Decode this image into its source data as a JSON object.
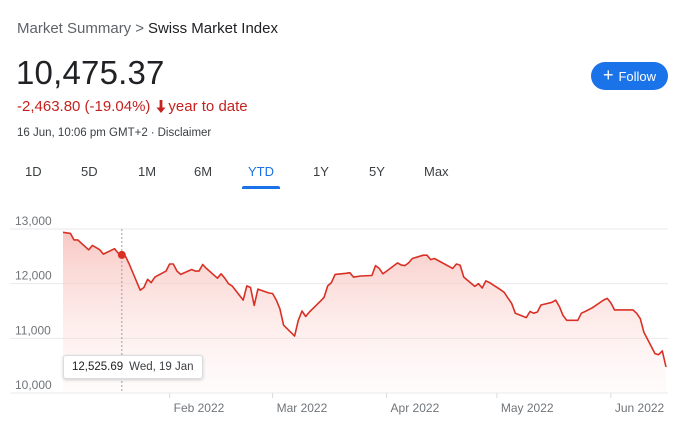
{
  "breadcrumb": {
    "parent": "Market Summary",
    "separator": ">",
    "current": "Swiss Market Index"
  },
  "quote": {
    "price": "10,475.37",
    "change": "-2,463.80 (-19.04%)",
    "period": "year to date",
    "timestamp": "16 Jun, 10:06 pm GMT+2",
    "separator": "·",
    "disclaimer": "Disclaimer"
  },
  "follow": {
    "label": "Follow",
    "icon": "plus-icon"
  },
  "tabs": [
    {
      "id": "1d",
      "label": "1D",
      "active": false
    },
    {
      "id": "5d",
      "label": "5D",
      "active": false
    },
    {
      "id": "1m",
      "label": "1M",
      "active": false
    },
    {
      "id": "6m",
      "label": "6M",
      "active": false
    },
    {
      "id": "ytd",
      "label": "YTD",
      "active": true
    },
    {
      "id": "1y",
      "label": "1Y",
      "active": false
    },
    {
      "id": "5y",
      "label": "5Y",
      "active": false
    },
    {
      "id": "max",
      "label": "Max",
      "active": false
    }
  ],
  "tooltip": {
    "value": "12,525.69",
    "date": "Wed, 19 Jan"
  },
  "colors": {
    "line": "#d93025",
    "accent": "#1a73e8",
    "negative": "#c5221f"
  },
  "chart_data": {
    "type": "area",
    "y_ticks": [
      {
        "value": 13000,
        "label": "13,000"
      },
      {
        "value": 12000,
        "label": "12,000"
      },
      {
        "value": 11000,
        "label": "11,000"
      },
      {
        "value": 10000,
        "label": "10,000"
      }
    ],
    "x_ticks": [
      {
        "value": "2022-02-01",
        "label": "Feb 2022"
      },
      {
        "value": "2022-03-01",
        "label": "Mar 2022"
      },
      {
        "value": "2022-04-01",
        "label": "Apr 2022"
      },
      {
        "value": "2022-05-01",
        "label": "May 2022"
      },
      {
        "value": "2022-06-01",
        "label": "Jun 2022"
      }
    ],
    "ylim": [
      10000,
      13000
    ],
    "xlim": [
      "2022-01-03",
      "2022-06-16"
    ],
    "grid": true,
    "highlight": {
      "x": "2022-01-19",
      "y": 12525.69
    },
    "series": [
      {
        "points": [
          [
            "2022-01-03",
            12940
          ],
          [
            "2022-01-05",
            12920
          ],
          [
            "2022-01-06",
            12800
          ],
          [
            "2022-01-07",
            12800
          ],
          [
            "2022-01-10",
            12620
          ],
          [
            "2022-01-11",
            12700
          ],
          [
            "2022-01-12",
            12660
          ],
          [
            "2022-01-13",
            12620
          ],
          [
            "2022-01-14",
            12540
          ],
          [
            "2022-01-17",
            12640
          ],
          [
            "2022-01-18",
            12560
          ],
          [
            "2022-01-19",
            12525.69
          ],
          [
            "2022-01-20",
            12500
          ],
          [
            "2022-01-21",
            12360
          ],
          [
            "2022-01-24",
            11880
          ],
          [
            "2022-01-25",
            11930
          ],
          [
            "2022-01-26",
            12080
          ],
          [
            "2022-01-27",
            12020
          ],
          [
            "2022-01-28",
            12120
          ],
          [
            "2022-01-31",
            12230
          ],
          [
            "2022-02-01",
            12360
          ],
          [
            "2022-02-02",
            12360
          ],
          [
            "2022-02-03",
            12230
          ],
          [
            "2022-02-04",
            12170
          ],
          [
            "2022-02-07",
            12260
          ],
          [
            "2022-02-08",
            12230
          ],
          [
            "2022-02-09",
            12230
          ],
          [
            "2022-02-10",
            12350
          ],
          [
            "2022-02-11",
            12280
          ],
          [
            "2022-02-14",
            12100
          ],
          [
            "2022-02-15",
            12180
          ],
          [
            "2022-02-16",
            12100
          ],
          [
            "2022-02-17",
            12000
          ],
          [
            "2022-02-18",
            11960
          ],
          [
            "2022-02-21",
            11700
          ],
          [
            "2022-02-22",
            11960
          ],
          [
            "2022-02-23",
            11930
          ],
          [
            "2022-02-24",
            11600
          ],
          [
            "2022-02-25",
            11900
          ],
          [
            "2022-02-28",
            11830
          ],
          [
            "2022-03-01",
            11820
          ],
          [
            "2022-03-02",
            11700
          ],
          [
            "2022-03-03",
            11540
          ],
          [
            "2022-03-04",
            11240
          ],
          [
            "2022-03-07",
            11040
          ],
          [
            "2022-03-08",
            11330
          ],
          [
            "2022-03-09",
            11500
          ],
          [
            "2022-03-10",
            11400
          ],
          [
            "2022-03-11",
            11480
          ],
          [
            "2022-03-14",
            11680
          ],
          [
            "2022-03-15",
            11750
          ],
          [
            "2022-03-16",
            11960
          ],
          [
            "2022-03-17",
            12020
          ],
          [
            "2022-03-18",
            12170
          ],
          [
            "2022-03-21",
            12190
          ],
          [
            "2022-03-22",
            12200
          ],
          [
            "2022-03-23",
            12120
          ],
          [
            "2022-03-24",
            12130
          ],
          [
            "2022-03-25",
            12140
          ],
          [
            "2022-03-28",
            12150
          ],
          [
            "2022-03-29",
            12330
          ],
          [
            "2022-03-30",
            12280
          ],
          [
            "2022-03-31",
            12180
          ],
          [
            "2022-04-01",
            12230
          ],
          [
            "2022-04-04",
            12380
          ],
          [
            "2022-04-05",
            12340
          ],
          [
            "2022-04-06",
            12330
          ],
          [
            "2022-04-07",
            12380
          ],
          [
            "2022-04-08",
            12460
          ],
          [
            "2022-04-11",
            12520
          ],
          [
            "2022-04-12",
            12520
          ],
          [
            "2022-04-13",
            12440
          ],
          [
            "2022-04-14",
            12460
          ],
          [
            "2022-04-19",
            12280
          ],
          [
            "2022-04-20",
            12360
          ],
          [
            "2022-04-21",
            12340
          ],
          [
            "2022-04-22",
            12120
          ],
          [
            "2022-04-25",
            11950
          ],
          [
            "2022-04-26",
            12000
          ],
          [
            "2022-04-27",
            11920
          ],
          [
            "2022-04-28",
            12050
          ],
          [
            "2022-04-29",
            12020
          ],
          [
            "2022-05-02",
            11890
          ],
          [
            "2022-05-03",
            11840
          ],
          [
            "2022-05-04",
            11740
          ],
          [
            "2022-05-05",
            11640
          ],
          [
            "2022-05-06",
            11460
          ],
          [
            "2022-05-09",
            11380
          ],
          [
            "2022-05-10",
            11490
          ],
          [
            "2022-05-11",
            11460
          ],
          [
            "2022-05-12",
            11480
          ],
          [
            "2022-05-13",
            11610
          ],
          [
            "2022-05-16",
            11660
          ],
          [
            "2022-05-17",
            11700
          ],
          [
            "2022-05-18",
            11580
          ],
          [
            "2022-05-19",
            11420
          ],
          [
            "2022-05-20",
            11330
          ],
          [
            "2022-05-23",
            11330
          ],
          [
            "2022-05-24",
            11460
          ],
          [
            "2022-05-25",
            11490
          ],
          [
            "2022-05-27",
            11560
          ],
          [
            "2022-05-30",
            11700
          ],
          [
            "2022-05-31",
            11730
          ],
          [
            "2022-06-01",
            11650
          ],
          [
            "2022-06-02",
            11520
          ],
          [
            "2022-06-03",
            11520
          ],
          [
            "2022-06-07",
            11520
          ],
          [
            "2022-06-08",
            11460
          ],
          [
            "2022-06-09",
            11360
          ],
          [
            "2022-06-10",
            11110
          ],
          [
            "2022-06-13",
            10720
          ],
          [
            "2022-06-14",
            10700
          ],
          [
            "2022-06-15",
            10770
          ],
          [
            "2022-06-16",
            10475.37
          ]
        ]
      }
    ]
  }
}
